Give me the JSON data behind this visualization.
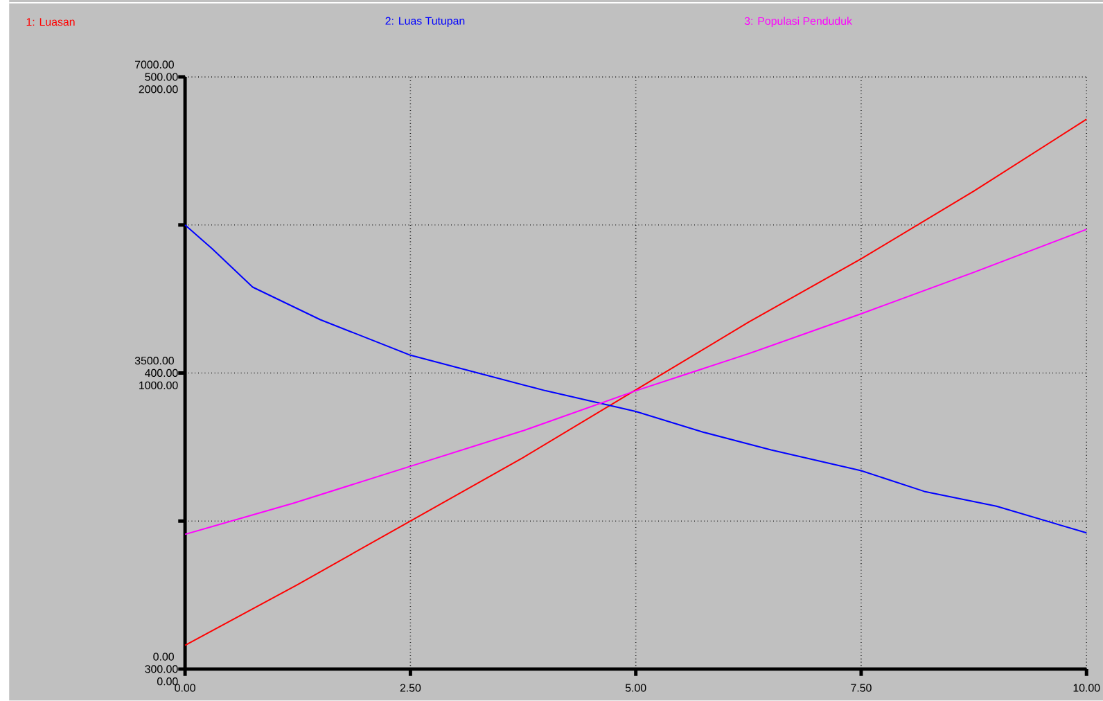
{
  "chart_data": {
    "type": "line",
    "legend": "top",
    "grid": true,
    "marker": "none",
    "line_style": "solid",
    "xlim": [
      0,
      10
    ],
    "xticks": [
      {
        "value": 0,
        "label": "0.00"
      },
      {
        "value": 2.5,
        "label": "2.50"
      },
      {
        "value": 5,
        "label": "5.00"
      },
      {
        "value": 7.5,
        "label": "7.50"
      },
      {
        "value": 10,
        "label": "10.00"
      }
    ],
    "ylim": [
      0,
      7000
    ],
    "yticks": [
      {
        "value": 0,
        "label": "0.00"
      },
      {
        "value": 1750,
        "label": null
      },
      {
        "value": 3500,
        "label": "3500.00"
      },
      {
        "value": 5250,
        "label": null
      },
      {
        "value": 7000,
        "label": "7000.00"
      }
    ],
    "y2lim": [
      300,
      500
    ],
    "y2ticks": [
      {
        "value": 300,
        "label": "300.00"
      },
      {
        "value": 400,
        "label": "400.00"
      },
      {
        "value": 500,
        "label": "500.00"
      }
    ],
    "y3lim": [
      0,
      2000
    ],
    "y3ticks": [
      {
        "value": 0,
        "label": "0.00"
      },
      {
        "value": 1000,
        "label": "1000.00"
      },
      {
        "value": 2000,
        "label": "2000.00"
      }
    ],
    "series": [
      {
        "name": "1: Luasan",
        "color": "#ff0000",
        "axis": "y",
        "x": [
          0,
          1.25,
          2.5,
          3.75,
          5,
          6.25,
          7.5,
          8.75,
          10
        ],
        "values": [
          280,
          1000,
          1750,
          2500,
          3300,
          4100,
          4850,
          5650,
          6500
        ]
      },
      {
        "name": "2: Luas Tutupan",
        "color": "#0000ff",
        "axis": "y2",
        "x": [
          0,
          0.3,
          0.75,
          1.5,
          2.5,
          3.25,
          4,
          5,
          5.75,
          6.5,
          7.5,
          8.2,
          9,
          10
        ],
        "values": [
          450,
          442,
          429,
          418,
          406,
          400,
          394,
          387,
          380,
          374,
          367,
          360,
          355,
          346
        ]
      },
      {
        "name": "3: Populasi Penduduk",
        "color": "#ff00ff",
        "axis": "y3",
        "x": [
          0,
          1.2,
          2.5,
          3.75,
          5,
          6.25,
          7.5,
          8.75,
          10
        ],
        "values": [
          455,
          560,
          685,
          805,
          940,
          1065,
          1200,
          1340,
          1485
        ]
      }
    ]
  }
}
